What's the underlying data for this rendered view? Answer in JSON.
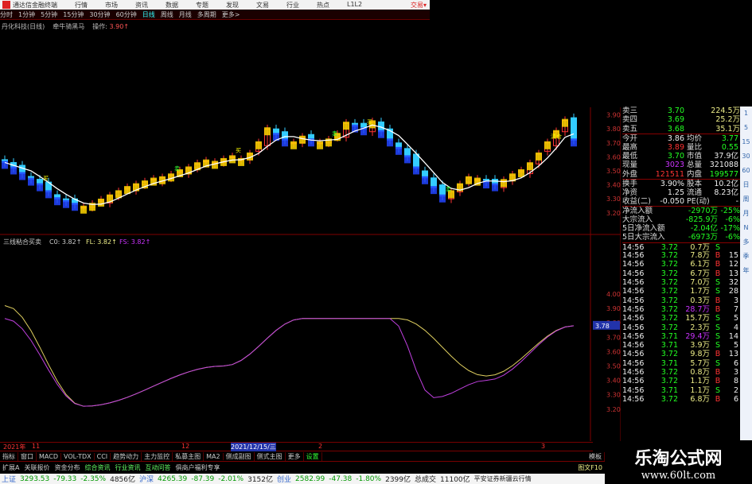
{
  "menu": {
    "app_title": "通达信金融终端",
    "items": [
      "行情",
      "市场",
      "资讯",
      "数据",
      "专题",
      "发现",
      "文易",
      "行业",
      "热点",
      "L1L2"
    ],
    "trade": "交易▾"
  },
  "toolbar": {
    "items": [
      "分时",
      "1分钟",
      "5分钟",
      "15分钟",
      "30分钟",
      "60分钟",
      "日线",
      "周线",
      "月线",
      "多周期",
      "更多>"
    ],
    "active": "日线"
  },
  "info": {
    "stock": "丹化科技(日线)",
    "formula": "牵牛骑黑马",
    "op_label": "操作:",
    "op_value": "3.90↑"
  },
  "price_axis": [
    "3.90",
    "3.80",
    "3.70",
    "3.60",
    "3.50",
    "3.40",
    "3.30",
    "3.20"
  ],
  "indicator": {
    "name": "三线粘合买卖",
    "c0": "C0: 3.82↑",
    "fl": "FL: 3.82↑",
    "fs": "FS: 3.82↑",
    "axis": [
      "4.00",
      "3.90",
      "3.80",
      "3.70",
      "3.60",
      "3.50",
      "3.40",
      "3.30",
      "3.20"
    ],
    "current": "3.78"
  },
  "chart_data": {
    "type": "candlestick",
    "ylim": [
      3.0,
      4.2
    ],
    "close": [
      3.56,
      3.52,
      3.48,
      3.44,
      3.4,
      3.35,
      3.3,
      3.28,
      3.26,
      3.24,
      3.26,
      3.29,
      3.32,
      3.35,
      3.38,
      3.4,
      3.42,
      3.44,
      3.45,
      3.47,
      3.5,
      3.52,
      3.55,
      3.57,
      3.56,
      3.58,
      3.6,
      3.58,
      3.62,
      3.7,
      3.8,
      3.76,
      3.72,
      3.7,
      3.74,
      3.72,
      3.7,
      3.72,
      3.76,
      3.84,
      3.82,
      3.8,
      3.85,
      3.78,
      3.72,
      3.66,
      3.6,
      3.52,
      3.45,
      3.38,
      3.32,
      3.35,
      3.4,
      3.45,
      3.44,
      3.42,
      3.4,
      3.43,
      3.47,
      3.5,
      3.55,
      3.62,
      3.7,
      3.78,
      3.86,
      3.72
    ],
    "labels": [
      "买",
      "卖",
      "买",
      "卖",
      "买",
      "卖",
      "清仓"
    ],
    "indicator_purple": [
      [
        0,
        3.83
      ],
      [
        9,
        3.22
      ],
      [
        25,
        3.5
      ],
      [
        34,
        3.83
      ],
      [
        44,
        3.83
      ],
      [
        49,
        3.28
      ],
      [
        55,
        3.4
      ],
      [
        65,
        3.78
      ]
    ],
    "indicator_yellow": [
      [
        0,
        3.92
      ],
      [
        9,
        3.22
      ],
      [
        25,
        3.5
      ],
      [
        34,
        3.83
      ],
      [
        45,
        3.83
      ],
      [
        55,
        3.43
      ],
      [
        65,
        3.78
      ]
    ]
  },
  "quote": [
    {
      "l": "卖三",
      "v": "3.70",
      "c": "g",
      "v2": "224.5万"
    },
    {
      "l": "卖四",
      "v": "3.69",
      "c": "g",
      "v2": "25.2万"
    },
    {
      "l": "卖五",
      "v": "3.68",
      "c": "g",
      "v2": "35.1万"
    }
  ],
  "stats": [
    {
      "l": "今开",
      "v": "3.86",
      "c": "w",
      "l2": "均价",
      "v2": "3.77",
      "c2": "g"
    },
    {
      "l": "最高",
      "v": "3.89",
      "c": "r",
      "l2": "量比",
      "v2": "0.55",
      "c2": "g"
    },
    {
      "l": "最低",
      "v": "3.70",
      "c": "g",
      "l2": "市值",
      "v2": "37.9亿",
      "c2": "w"
    },
    {
      "l": "现量",
      "v": "3023",
      "c": "p",
      "l2": "总量",
      "v2": "321088",
      "c2": "w"
    },
    {
      "l": "外盘",
      "v": "121511",
      "c": "r",
      "l2": "内盘",
      "v2": "199577",
      "c2": "g"
    },
    {
      "l": "换手",
      "v": "3.90%",
      "c": "w",
      "l2": "股本",
      "v2": "10.2亿",
      "c2": "w"
    },
    {
      "l": "净资",
      "v": "1.25",
      "c": "w",
      "l2": "流通",
      "v2": "8.23亿",
      "c2": "w"
    },
    {
      "l": "收益(二)",
      "v": "-0.050",
      "c": "w",
      "l2": "PE(动)",
      "v2": "-",
      "c2": "w"
    }
  ],
  "flows": [
    {
      "l": "净流入额",
      "v": "-2970万",
      "p": "-25%"
    },
    {
      "l": "大宗流入",
      "v": "-825.9万",
      "p": "-6%"
    },
    {
      "l": "5日净流入额",
      "v": "-2.04亿",
      "p": "-17%"
    },
    {
      "l": "5日大宗流入",
      "v": "-6973万",
      "p": "-6%"
    }
  ],
  "trades": [
    [
      "14:56",
      "3.72",
      "0.7万",
      "S",
      ""
    ],
    [
      "14:56",
      "3.72",
      "7.8万",
      "B",
      "15"
    ],
    [
      "14:56",
      "3.72",
      "6.1万",
      "B",
      "12"
    ],
    [
      "14:56",
      "3.72",
      "6.7万",
      "B",
      "13"
    ],
    [
      "14:56",
      "3.72",
      "7.0万",
      "S",
      "32"
    ],
    [
      "14:56",
      "3.72",
      "1.7万",
      "S",
      "28"
    ],
    [
      "14:56",
      "3.72",
      "0.3万",
      "B",
      "3"
    ],
    [
      "14:56",
      "3.72",
      "28.7万",
      "B",
      "7"
    ],
    [
      "14:56",
      "3.72",
      "15.7万",
      "S",
      "5"
    ],
    [
      "14:56",
      "3.72",
      "2.3万",
      "S",
      "4"
    ],
    [
      "14:56",
      "3.71",
      "29.4万",
      "S",
      "14"
    ],
    [
      "14:56",
      "3.71",
      "3.9万",
      "S",
      "5"
    ],
    [
      "14:56",
      "3.72",
      "9.8万",
      "B",
      "13"
    ],
    [
      "14:56",
      "3.71",
      "5.7万",
      "S",
      "6"
    ],
    [
      "14:56",
      "3.72",
      "0.8万",
      "B",
      "3"
    ],
    [
      "14:56",
      "3.72",
      "1.1万",
      "B",
      "8"
    ],
    [
      "14:56",
      "3.71",
      "1.1万",
      "S",
      "2"
    ],
    [
      "14:56",
      "3.72",
      "6.8万",
      "B",
      "6"
    ]
  ],
  "strip": [
    "1",
    "5",
    "15",
    "30",
    "60",
    "日",
    "周",
    "月",
    "N",
    "多",
    "季",
    "年"
  ],
  "dates": {
    "d1": "2021年",
    "d2": "11",
    "d3": "12",
    "d4": "2021/12/15/三",
    "d5": "2",
    "d6": "3"
  },
  "tabs1": [
    "指标",
    "窗口",
    "MACD",
    "VOL-TDX",
    "CCI",
    "趋势动力",
    "主力监控",
    "私募主图",
    "MA2",
    "侧成副图",
    "侧式主图",
    "更多",
    "设置"
  ],
  "tabs1_right": "模板",
  "tabs2": [
    "扩展A",
    "关联报价",
    "资金分布",
    "综合资讯",
    "行业资讯",
    "互动问答",
    "俱商户福利专享"
  ],
  "tabs2_right": "图文F10",
  "status": [
    {
      "n": "上证",
      "v": "3293.53",
      "c": "-79.33",
      "p": "-2.35%",
      "a": "4856亿"
    },
    {
      "n": "沪深",
      "v": "4265.39",
      "c": "-87.39",
      "p": "-2.01%",
      "a": "3152亿"
    },
    {
      "n": "创业",
      "v": "2582.99",
      "c": "-47.38",
      "p": "-1.80%",
      "a": "2399亿"
    }
  ],
  "status_total": "总成交",
  "status_total_v": "11100亿",
  "status_news": "平安证券新疆云行情",
  "watermark": {
    "title": "乐淘公式网",
    "url": "www.60lt.com"
  },
  "colors": {
    "up": "#ff3333",
    "down": "#33ccff",
    "ma": "#ffffff",
    "purple": "#c040e0",
    "yellow": "#e0d060",
    "grid": "#800000"
  }
}
